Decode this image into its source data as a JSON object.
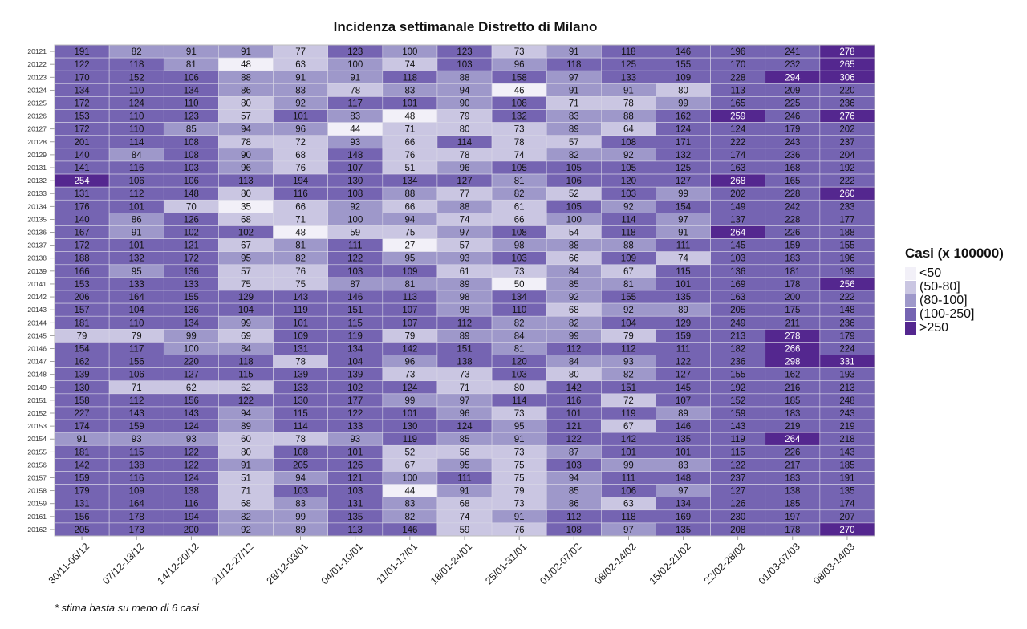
{
  "chart_data": {
    "type": "heatmap",
    "title": "Incidenza settimanale Distretto di Milano",
    "xlabel": "",
    "ylabel": "",
    "legend_title": "Casi (x 100000)",
    "legend_position": "right",
    "footnote": "* stima basta su meno di 6 casi",
    "categories": [
      "30/11-06/12",
      "07/12-13/12",
      "14/12-20/12",
      "21/12-27/12",
      "28/12-03/01",
      "04/01-10/01",
      "11/01-17/01",
      "18/01-24/01",
      "25/01-31/01",
      "01/02-07/02",
      "08/02-14/02",
      "15/02-21/02",
      "22/02-28/02",
      "01/03-07/03",
      "08/03-14/03"
    ],
    "rows": [
      "20121",
      "20122",
      "20123",
      "20124",
      "20125",
      "20126",
      "20127",
      "20128",
      "20129",
      "20131",
      "20132",
      "20133",
      "20134",
      "20135",
      "20136",
      "20137",
      "20138",
      "20139",
      "20141",
      "20142",
      "20143",
      "20144",
      "20145",
      "20146",
      "20147",
      "20148",
      "20149",
      "20151",
      "20152",
      "20153",
      "20154",
      "20155",
      "20156",
      "20157",
      "20158",
      "20159",
      "20161",
      "20162"
    ],
    "values": [
      [
        191,
        82,
        91,
        91,
        77,
        123,
        100,
        123,
        73,
        91,
        118,
        146,
        196,
        241,
        278
      ],
      [
        122,
        118,
        81,
        48,
        63,
        100,
        74,
        103,
        96,
        118,
        125,
        155,
        170,
        232,
        265
      ],
      [
        170,
        152,
        106,
        88,
        91,
        91,
        118,
        88,
        158,
        97,
        133,
        109,
        228,
        294,
        306
      ],
      [
        134,
        110,
        134,
        86,
        83,
        78,
        83,
        94,
        46,
        91,
        91,
        80,
        113,
        209,
        220
      ],
      [
        172,
        124,
        110,
        80,
        92,
        117,
        101,
        90,
        108,
        71,
        78,
        99,
        165,
        225,
        236
      ],
      [
        153,
        110,
        123,
        57,
        101,
        83,
        48,
        79,
        132,
        83,
        88,
        162,
        259,
        246,
        276
      ],
      [
        172,
        110,
        85,
        94,
        96,
        44,
        71,
        80,
        73,
        89,
        64,
        124,
        124,
        179,
        202
      ],
      [
        201,
        114,
        108,
        78,
        72,
        93,
        66,
        114,
        78,
        57,
        108,
        171,
        222,
        243,
        237
      ],
      [
        140,
        84,
        108,
        90,
        68,
        148,
        76,
        78,
        74,
        82,
        92,
        132,
        174,
        236,
        204
      ],
      [
        141,
        116,
        103,
        96,
        76,
        107,
        51,
        96,
        105,
        105,
        105,
        125,
        163,
        168,
        192
      ],
      [
        254,
        106,
        106,
        113,
        194,
        130,
        134,
        127,
        81,
        106,
        120,
        127,
        268,
        165,
        222
      ],
      [
        131,
        112,
        148,
        80,
        116,
        108,
        88,
        77,
        82,
        52,
        103,
        99,
        202,
        228,
        260
      ],
      [
        176,
        101,
        70,
        35,
        66,
        92,
        66,
        88,
        61,
        105,
        92,
        154,
        149,
        242,
        233
      ],
      [
        140,
        86,
        126,
        68,
        71,
        100,
        94,
        74,
        66,
        100,
        114,
        97,
        137,
        228,
        177
      ],
      [
        167,
        91,
        102,
        102,
        48,
        59,
        75,
        97,
        108,
        54,
        118,
        91,
        264,
        226,
        188
      ],
      [
        172,
        101,
        121,
        67,
        81,
        111,
        27,
        57,
        98,
        88,
        88,
        111,
        145,
        159,
        155
      ],
      [
        188,
        132,
        172,
        95,
        82,
        122,
        95,
        93,
        103,
        66,
        109,
        74,
        103,
        183,
        196
      ],
      [
        166,
        95,
        136,
        57,
        76,
        103,
        109,
        61,
        73,
        84,
        67,
        115,
        136,
        181,
        199
      ],
      [
        153,
        133,
        133,
        75,
        75,
        87,
        81,
        89,
        50,
        85,
        81,
        101,
        169,
        178,
        256
      ],
      [
        206,
        164,
        155,
        129,
        143,
        146,
        113,
        98,
        134,
        92,
        155,
        135,
        163,
        200,
        222
      ],
      [
        157,
        104,
        136,
        104,
        119,
        151,
        107,
        98,
        110,
        68,
        92,
        89,
        205,
        175,
        148
      ],
      [
        181,
        110,
        134,
        99,
        101,
        115,
        107,
        112,
        82,
        82,
        104,
        129,
        249,
        211,
        236
      ],
      [
        79,
        79,
        99,
        69,
        109,
        119,
        79,
        89,
        84,
        99,
        79,
        159,
        213,
        278,
        179
      ],
      [
        154,
        117,
        100,
        84,
        131,
        134,
        142,
        151,
        81,
        112,
        112,
        111,
        182,
        266,
        224
      ],
      [
        162,
        156,
        220,
        118,
        78,
        104,
        96,
        138,
        120,
        84,
        93,
        122,
        236,
        298,
        331
      ],
      [
        139,
        106,
        127,
        115,
        139,
        139,
        73,
        73,
        103,
        80,
        82,
        127,
        155,
        162,
        193
      ],
      [
        130,
        71,
        62,
        62,
        133,
        102,
        124,
        71,
        80,
        142,
        151,
        145,
        192,
        216,
        213
      ],
      [
        158,
        112,
        156,
        122,
        130,
        177,
        99,
        97,
        114,
        116,
        72,
        107,
        152,
        185,
        248
      ],
      [
        227,
        143,
        143,
        94,
        115,
        122,
        101,
        96,
        73,
        101,
        119,
        89,
        159,
        183,
        243
      ],
      [
        174,
        159,
        124,
        89,
        114,
        133,
        130,
        124,
        95,
        121,
        67,
        146,
        143,
        219,
        219
      ],
      [
        91,
        93,
        93,
        60,
        78,
        93,
        119,
        85,
        91,
        122,
        142,
        135,
        119,
        264,
        218
      ],
      [
        181,
        115,
        122,
        80,
        108,
        101,
        52,
        56,
        73,
        87,
        101,
        101,
        115,
        226,
        143
      ],
      [
        142,
        138,
        122,
        91,
        205,
        126,
        67,
        95,
        75,
        103,
        99,
        83,
        122,
        217,
        185
      ],
      [
        159,
        116,
        124,
        51,
        94,
        121,
        100,
        111,
        75,
        94,
        111,
        148,
        237,
        183,
        191
      ],
      [
        179,
        109,
        138,
        71,
        103,
        103,
        44,
        91,
        79,
        85,
        106,
        97,
        127,
        138,
        135
      ],
      [
        131,
        164,
        116,
        68,
        83,
        131,
        83,
        68,
        73,
        86,
        63,
        134,
        126,
        185,
        174
      ],
      [
        156,
        178,
        194,
        82,
        99,
        135,
        82,
        74,
        91,
        112,
        118,
        169,
        230,
        197,
        207
      ],
      [
        205,
        173,
        200,
        92,
        89,
        113,
        146,
        59,
        76,
        108,
        97,
        135,
        208,
        178,
        270
      ]
    ],
    "legend": [
      {
        "label": "<50",
        "color": "#f2f0f8"
      },
      {
        "label": "(50-80]",
        "color": "#cac6e2"
      },
      {
        "label": "(80-100]",
        "color": "#9e98ca"
      },
      {
        "label": "(100-250]",
        "color": "#7564b2"
      },
      {
        "label": ">250",
        "color": "#54278f"
      }
    ],
    "grid": false
  }
}
